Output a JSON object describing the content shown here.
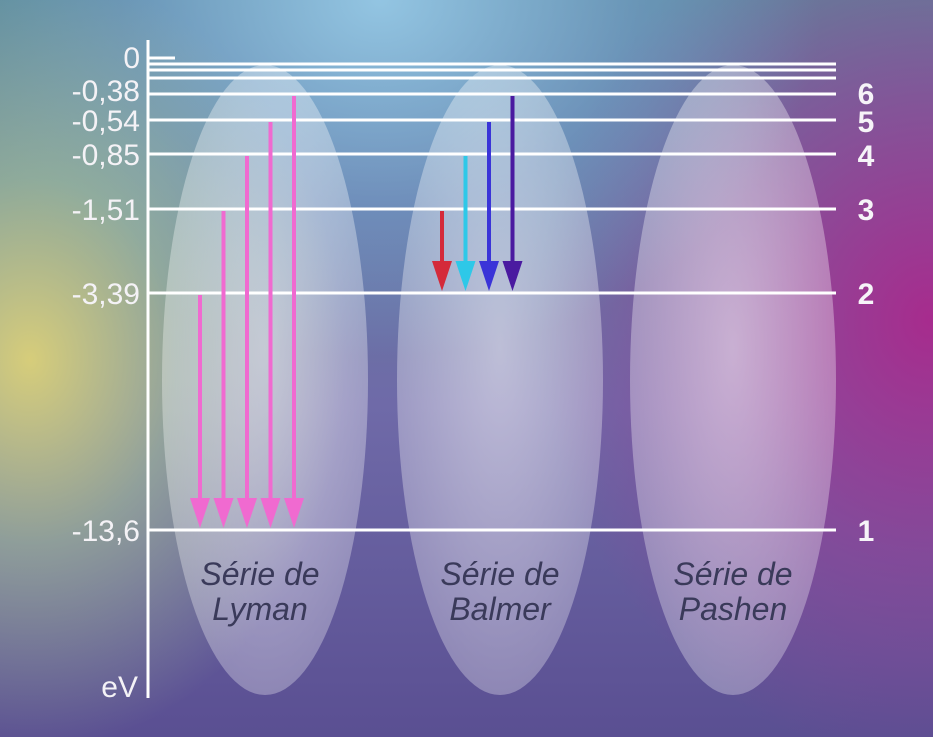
{
  "diagram": {
    "unit": "eV",
    "energy_levels": [
      {
        "n": "",
        "energy": "0"
      },
      {
        "n": "6",
        "energy": "-0,38"
      },
      {
        "n": "5",
        "energy": "-0,54"
      },
      {
        "n": "4",
        "energy": "-0,85"
      },
      {
        "n": "3",
        "energy": "-1,51"
      },
      {
        "n": "2",
        "energy": "-3,39"
      },
      {
        "n": "1",
        "energy": "-13,6"
      }
    ],
    "series": [
      {
        "line1": "Série de",
        "line2": "Lyman",
        "final_level": 1,
        "transitions_from": [
          2,
          3,
          4,
          5,
          6
        ],
        "colors": [
          "#f06ad0",
          "#f06ad0",
          "#f06ad0",
          "#f06ad0",
          "#f06ad0"
        ]
      },
      {
        "line1": "Série de",
        "line2": "Balmer",
        "final_level": 2,
        "transitions_from": [
          3,
          4,
          5,
          6
        ],
        "colors": [
          "#d42a3a",
          "#2ec8e8",
          "#3a34d8",
          "#4a1aa0"
        ]
      },
      {
        "line1": "Série de",
        "line2": "Pashen",
        "final_level": 3,
        "transitions_from": [],
        "colors": []
      }
    ]
  }
}
